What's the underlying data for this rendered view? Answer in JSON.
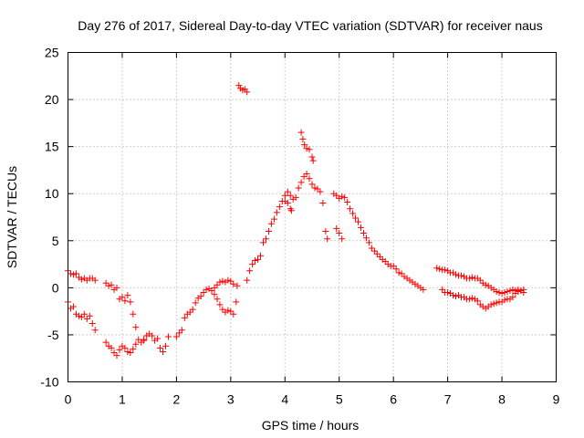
{
  "chart_data": {
    "type": "scatter",
    "title": "Day 276 of 2017, Sidereal Day-to-day VTEC variation (SDTVAR) for receiver naus",
    "xlabel": "GPS time / hours",
    "ylabel": "SDTVAR / TECUs",
    "xlim": [
      0,
      9
    ],
    "ylim": [
      -10,
      25
    ],
    "xticks": [
      0,
      1,
      2,
      3,
      4,
      5,
      6,
      7,
      8,
      9
    ],
    "yticks": [
      -10,
      -5,
      0,
      5,
      10,
      15,
      20,
      25
    ],
    "xtick_labels": [
      "0",
      "1",
      "2",
      "3",
      "4",
      "5",
      "6",
      "7",
      "8",
      "9"
    ],
    "ytick_labels": [
      "-10",
      "-5",
      "0",
      "5",
      "10",
      "15",
      "20",
      "25"
    ],
    "grid": true,
    "marker": "plus",
    "color": "#ff0000",
    "series": [
      {
        "name": "segment-1",
        "points": [
          [
            0.0,
            1.8
          ],
          [
            0.05,
            1.5
          ],
          [
            0.1,
            1.4
          ],
          [
            0.15,
            1.5
          ],
          [
            0.2,
            1.1
          ],
          [
            0.25,
            0.9
          ],
          [
            0.3,
            1.0
          ],
          [
            0.35,
            0.8
          ],
          [
            0.4,
            1.0
          ],
          [
            0.45,
            1.0
          ],
          [
            0.5,
            0.8
          ]
        ]
      },
      {
        "name": "segment-2",
        "points": [
          [
            0.0,
            -1.5
          ],
          [
            0.05,
            -2.2
          ],
          [
            0.1,
            -2.0
          ],
          [
            0.15,
            -2.8
          ],
          [
            0.2,
            -3.0
          ],
          [
            0.25,
            -3.1
          ],
          [
            0.3,
            -2.8
          ],
          [
            0.35,
            -3.3
          ],
          [
            0.4,
            -3.0
          ],
          [
            0.45,
            -3.8
          ],
          [
            0.5,
            -4.5
          ]
        ]
      },
      {
        "name": "segment-3",
        "points": [
          [
            0.7,
            0.5
          ],
          [
            0.75,
            0.2
          ],
          [
            0.8,
            0.3
          ],
          [
            0.85,
            -0.2
          ],
          [
            0.9,
            0.0
          ],
          [
            0.95,
            -1.2
          ],
          [
            1.0,
            -1.0
          ],
          [
            1.05,
            -1.4
          ],
          [
            1.1,
            -0.8
          ],
          [
            1.15,
            -1.5
          ],
          [
            1.2,
            -2.8
          ],
          [
            1.25,
            -4.2
          ],
          [
            1.3,
            -5.5
          ],
          [
            1.35,
            -5.8
          ],
          [
            1.4,
            -5.6
          ]
        ]
      },
      {
        "name": "segment-4",
        "points": [
          [
            0.7,
            -5.8
          ],
          [
            0.75,
            -6.2
          ],
          [
            0.8,
            -6.4
          ],
          [
            0.85,
            -6.9
          ],
          [
            0.9,
            -7.2
          ],
          [
            0.95,
            -6.6
          ],
          [
            1.0,
            -6.2
          ],
          [
            1.05,
            -6.4
          ],
          [
            1.1,
            -6.8
          ],
          [
            1.15,
            -6.9
          ],
          [
            1.2,
            -6.5
          ],
          [
            1.25,
            -6.0
          ]
        ]
      },
      {
        "name": "segment-5",
        "points": [
          [
            1.4,
            -5.5
          ],
          [
            1.45,
            -5.1
          ],
          [
            1.5,
            -4.9
          ],
          [
            1.55,
            -5.1
          ],
          [
            1.6,
            -5.6
          ],
          [
            1.65,
            -5.4
          ],
          [
            1.7,
            -6.4
          ],
          [
            1.75,
            -6.8
          ],
          [
            1.8,
            -6.2
          ],
          [
            1.85,
            -5.2
          ]
        ]
      },
      {
        "name": "segment-6",
        "points": [
          [
            2.0,
            -5.2
          ],
          [
            2.05,
            -4.8
          ],
          [
            2.1,
            -4.5
          ],
          [
            2.15,
            -3.2
          ],
          [
            2.2,
            -2.8
          ],
          [
            2.25,
            -2.6
          ],
          [
            2.3,
            -2.3
          ],
          [
            2.35,
            -1.6
          ],
          [
            2.4,
            -1.1
          ],
          [
            2.45,
            -0.9
          ],
          [
            2.5,
            -0.5
          ],
          [
            2.55,
            -0.2
          ],
          [
            2.6,
            -0.1
          ],
          [
            2.65,
            -0.3
          ],
          [
            2.7,
            -0.7
          ],
          [
            2.75,
            -1.2
          ],
          [
            2.8,
            -1.8
          ],
          [
            2.85,
            -2.3
          ],
          [
            2.9,
            -2.6
          ],
          [
            2.95,
            -2.4
          ],
          [
            3.0,
            -2.5
          ],
          [
            3.05,
            -2.8
          ],
          [
            3.1,
            -1.5
          ],
          [
            3.12,
            0.2
          ]
        ]
      },
      {
        "name": "segment-7",
        "points": [
          [
            2.7,
            0.0
          ],
          [
            2.75,
            0.3
          ],
          [
            2.8,
            0.6
          ],
          [
            2.85,
            0.7
          ],
          [
            2.9,
            0.6
          ],
          [
            2.95,
            0.8
          ],
          [
            3.0,
            0.7
          ],
          [
            3.05,
            0.4
          ]
        ]
      },
      {
        "name": "segment-8",
        "points": [
          [
            3.15,
            21.5
          ],
          [
            3.18,
            21.2
          ],
          [
            3.22,
            21.0
          ],
          [
            3.26,
            21.1
          ],
          [
            3.3,
            20.8
          ]
        ]
      },
      {
        "name": "segment-9",
        "points": [
          [
            3.3,
            0.8
          ],
          [
            3.35,
            1.8
          ],
          [
            3.4,
            2.5
          ],
          [
            3.45,
            2.9
          ],
          [
            3.5,
            3.0
          ],
          [
            3.55,
            3.4
          ],
          [
            3.6,
            4.8
          ],
          [
            3.65,
            5.2
          ],
          [
            3.7,
            6.0
          ],
          [
            3.75,
            6.8
          ],
          [
            3.8,
            7.3
          ],
          [
            3.85,
            8.0
          ],
          [
            3.9,
            8.6
          ],
          [
            3.95,
            9.2
          ],
          [
            4.0,
            9.8
          ],
          [
            4.05,
            10.2
          ],
          [
            4.1,
            9.8
          ],
          [
            4.15,
            9.4
          ],
          [
            4.2,
            9.6
          ],
          [
            4.25,
            10.6
          ],
          [
            4.3,
            11.2
          ],
          [
            4.35,
            11.8
          ],
          [
            4.4,
            12.1
          ],
          [
            4.45,
            11.6
          ],
          [
            4.5,
            11.0
          ],
          [
            4.55,
            10.6
          ],
          [
            4.6,
            10.5
          ],
          [
            4.65,
            10.2
          ],
          [
            4.7,
            9.0
          ],
          [
            4.75,
            6.0
          ],
          [
            4.78,
            5.2
          ]
        ]
      },
      {
        "name": "segment-10",
        "points": [
          [
            4.0,
            9.2
          ],
          [
            4.05,
            9.0
          ],
          [
            4.1,
            8.4
          ],
          [
            4.12,
            8.2
          ]
        ]
      },
      {
        "name": "segment-11",
        "points": [
          [
            4.3,
            16.5
          ],
          [
            4.33,
            15.8
          ],
          [
            4.36,
            15.2
          ],
          [
            4.4,
            14.8
          ],
          [
            4.45,
            14.7
          ],
          [
            4.5,
            13.9
          ],
          [
            4.52,
            13.5
          ]
        ]
      },
      {
        "name": "segment-12",
        "points": [
          [
            4.9,
            10.0
          ],
          [
            4.95,
            9.8
          ],
          [
            5.0,
            9.5
          ],
          [
            5.05,
            9.7
          ],
          [
            5.1,
            9.6
          ],
          [
            5.15,
            9.1
          ],
          [
            5.2,
            8.4
          ],
          [
            5.25,
            7.9
          ],
          [
            5.3,
            7.4
          ],
          [
            5.35,
            7.0
          ],
          [
            5.4,
            6.4
          ],
          [
            5.45,
            5.8
          ],
          [
            5.5,
            5.3
          ],
          [
            5.55,
            4.8
          ],
          [
            5.6,
            4.2
          ],
          [
            5.65,
            3.9
          ],
          [
            5.7,
            3.6
          ],
          [
            5.75,
            3.3
          ],
          [
            5.8,
            3.0
          ],
          [
            5.85,
            2.8
          ],
          [
            5.9,
            2.5
          ],
          [
            5.95,
            2.3
          ],
          [
            6.0,
            2.3
          ],
          [
            6.05,
            2.0
          ],
          [
            6.1,
            1.6
          ],
          [
            6.15,
            1.5
          ],
          [
            6.2,
            1.2
          ],
          [
            6.25,
            1.0
          ],
          [
            6.3,
            0.8
          ],
          [
            6.35,
            0.6
          ],
          [
            6.4,
            0.4
          ],
          [
            6.45,
            0.2
          ],
          [
            6.5,
            0.0
          ],
          [
            6.55,
            -0.2
          ]
        ]
      },
      {
        "name": "segment-13",
        "points": [
          [
            4.95,
            6.3
          ],
          [
            5.0,
            5.8
          ],
          [
            5.05,
            5.2
          ]
        ]
      },
      {
        "name": "segment-14",
        "points": [
          [
            6.8,
            2.1
          ],
          [
            6.85,
            2.0
          ],
          [
            6.9,
            1.9
          ],
          [
            6.95,
            1.9
          ],
          [
            7.0,
            1.8
          ],
          [
            7.05,
            1.6
          ],
          [
            7.1,
            1.6
          ],
          [
            7.15,
            1.4
          ],
          [
            7.2,
            1.3
          ],
          [
            7.25,
            1.3
          ],
          [
            7.3,
            1.2
          ],
          [
            7.35,
            1.0
          ],
          [
            7.4,
            1.0
          ],
          [
            7.45,
            1.1
          ],
          [
            7.5,
            1.0
          ],
          [
            7.55,
            1.0
          ],
          [
            7.6,
            0.8
          ],
          [
            7.65,
            0.5
          ],
          [
            7.7,
            0.3
          ],
          [
            7.75,
            0.2
          ],
          [
            7.8,
            0.0
          ],
          [
            7.85,
            -0.2
          ],
          [
            7.9,
            -0.4
          ],
          [
            7.95,
            -0.5
          ],
          [
            8.0,
            -0.6
          ],
          [
            8.05,
            -0.5
          ],
          [
            8.1,
            -0.4
          ],
          [
            8.15,
            -0.3
          ],
          [
            8.2,
            -0.2
          ],
          [
            8.25,
            -0.3
          ],
          [
            8.3,
            -0.4
          ],
          [
            8.35,
            -0.3
          ],
          [
            8.4,
            -0.5
          ]
        ]
      },
      {
        "name": "segment-15",
        "points": [
          [
            6.9,
            -0.2
          ],
          [
            6.95,
            -0.5
          ],
          [
            7.0,
            -0.5
          ],
          [
            7.05,
            -0.6
          ],
          [
            7.1,
            -0.8
          ],
          [
            7.15,
            -0.9
          ],
          [
            7.2,
            -0.8
          ],
          [
            7.25,
            -1.0
          ],
          [
            7.3,
            -1.0
          ],
          [
            7.35,
            -1.2
          ],
          [
            7.4,
            -1.2
          ],
          [
            7.45,
            -1.1
          ],
          [
            7.5,
            -1.2
          ],
          [
            7.55,
            -1.4
          ],
          [
            7.6,
            -1.8
          ],
          [
            7.65,
            -2.0
          ],
          [
            7.7,
            -2.2
          ],
          [
            7.75,
            -2.0
          ],
          [
            7.8,
            -1.8
          ],
          [
            7.85,
            -1.7
          ],
          [
            7.9,
            -1.6
          ],
          [
            7.95,
            -1.5
          ],
          [
            8.0,
            -1.5
          ],
          [
            8.05,
            -1.3
          ],
          [
            8.1,
            -1.2
          ],
          [
            8.15,
            -1.2
          ],
          [
            8.2,
            -1.0
          ],
          [
            8.25,
            -0.6
          ],
          [
            8.3,
            -0.2
          ],
          [
            8.35,
            -0.3
          ],
          [
            8.4,
            -0.2
          ]
        ]
      }
    ]
  }
}
